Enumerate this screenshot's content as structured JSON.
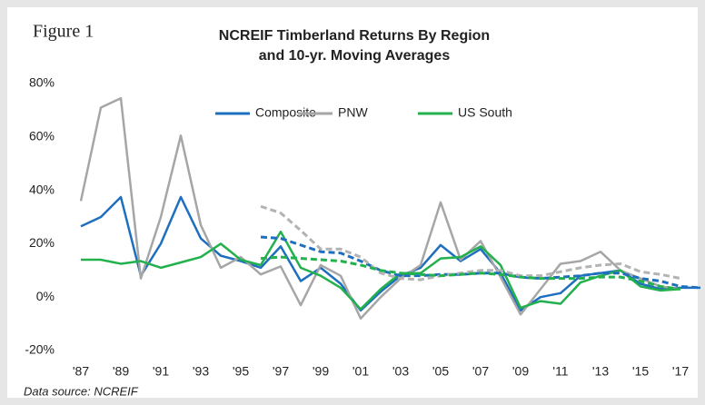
{
  "chart_data": {
    "type": "line",
    "figure_label": "Figure 1",
    "title": [
      "NCREIF Timberland Returns By Region",
      "and 10-yr. Moving Averages"
    ],
    "source": "Data source: NCREIF",
    "categories": [
      "'87",
      null,
      "'89",
      null,
      "'91",
      null,
      "'93",
      null,
      "'95",
      null,
      "'97",
      null,
      "'99",
      null,
      "'01",
      null,
      "'03",
      null,
      "'05",
      null,
      "'07",
      null,
      "'09",
      null,
      "'11",
      null,
      "'13",
      null,
      "'15",
      null,
      "'17",
      null
    ],
    "ylim": [
      -20,
      80
    ],
    "yticks": [
      {
        "value": -20,
        "label": "-20%"
      },
      {
        "value": 0,
        "label": "0%"
      },
      {
        "value": 20,
        "label": "20%"
      },
      {
        "value": 40,
        "label": "40%"
      },
      {
        "value": 60,
        "label": "60%"
      },
      {
        "value": 80,
        "label": "80%"
      }
    ],
    "grid": false,
    "legend": "top",
    "series": [
      {
        "name": "Composite",
        "color": "#1f6fbf",
        "values": [
          26.5,
          30,
          37.5,
          8,
          20,
          37.5,
          22,
          15.5,
          13.5,
          11,
          19,
          6,
          11,
          5,
          -5,
          2,
          8,
          11,
          19.5,
          13.5,
          18,
          9,
          -5,
          0,
          1.5,
          8,
          9,
          10,
          5,
          3,
          3.5,
          3.5
        ]
      },
      {
        "name": "PNW",
        "color": "#a6a6a6",
        "values": [
          36,
          71,
          74.5,
          7,
          30,
          60.5,
          27,
          11,
          15,
          8.5,
          11.5,
          -3,
          12,
          8,
          -8,
          0,
          7,
          12,
          35.5,
          14,
          21,
          7.5,
          -6.5,
          3,
          12.5,
          13.5,
          17,
          10,
          7,
          4,
          3,
          null
        ]
      },
      {
        "name": "US South",
        "color": "#22b14c",
        "values": [
          14,
          14,
          12.5,
          13.5,
          11,
          13,
          15,
          20,
          14,
          12,
          24.5,
          11,
          8,
          3.5,
          -4.5,
          3,
          9,
          9,
          14.5,
          15,
          19,
          12,
          -4,
          -1.5,
          -2.5,
          5.5,
          8,
          10,
          4,
          2.5,
          3,
          null
        ]
      },
      {
        "color": "#1f6fbf",
        "dashed": true,
        "values": [
          null,
          null,
          null,
          null,
          null,
          null,
          null,
          null,
          null,
          22.5,
          22,
          19.5,
          17,
          16.5,
          13.5,
          10,
          8,
          8,
          8.5,
          8.5,
          9,
          9,
          7.5,
          7,
          7.5,
          8,
          9,
          9,
          7,
          6,
          4,
          3.5
        ]
      },
      {
        "color": "#b3b3b3",
        "dashed": true,
        "values": [
          null,
          null,
          null,
          null,
          null,
          null,
          null,
          null,
          null,
          34,
          31.5,
          25,
          18,
          18,
          15,
          9,
          7,
          6.5,
          8,
          9,
          10,
          10,
          8,
          8,
          9.5,
          11,
          12,
          12.5,
          9.5,
          8.5,
          7,
          null
        ]
      },
      {
        "color": "#22b14c",
        "dashed": true,
        "values": [
          null,
          null,
          null,
          null,
          null,
          null,
          null,
          null,
          null,
          14.5,
          15,
          14.5,
          14,
          13.5,
          12,
          10,
          9,
          8.5,
          8,
          8.5,
          9,
          8.5,
          7.5,
          7,
          7,
          7,
          7.5,
          7.5,
          6,
          4,
          3,
          null
        ]
      }
    ]
  }
}
